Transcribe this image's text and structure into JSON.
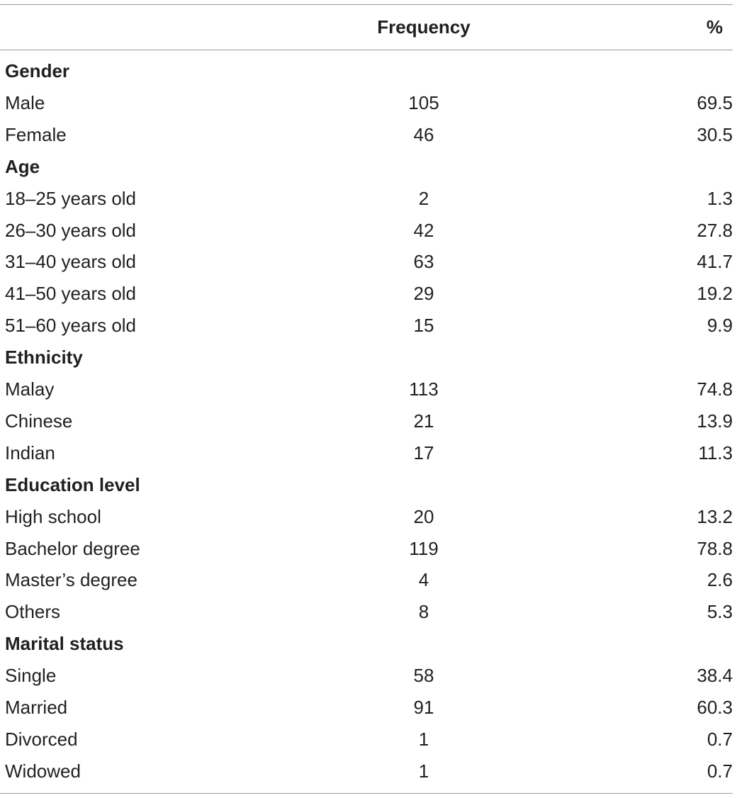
{
  "table": {
    "headers": {
      "label": "",
      "frequency": "Frequency",
      "percent": "%"
    },
    "rows": [
      {
        "label": "Gender",
        "section": true
      },
      {
        "label": "Male",
        "frequency": "105",
        "percent": "69.5"
      },
      {
        "label": "Female",
        "frequency": "46",
        "percent": "30.5"
      },
      {
        "label": "Age",
        "section": true
      },
      {
        "label": "18–25 years old",
        "frequency": "2",
        "percent": "1.3"
      },
      {
        "label": "26–30 years old",
        "frequency": "42",
        "percent": "27.8"
      },
      {
        "label": "31–40 years old",
        "frequency": "63",
        "percent": "41.7"
      },
      {
        "label": "41–50 years old",
        "frequency": "29",
        "percent": "19.2"
      },
      {
        "label": "51–60 years old",
        "frequency": "15",
        "percent": "9.9"
      },
      {
        "label": "Ethnicity",
        "section": true
      },
      {
        "label": "Malay",
        "frequency": "113",
        "percent": "74.8"
      },
      {
        "label": "Chinese",
        "frequency": "21",
        "percent": "13.9"
      },
      {
        "label": "Indian",
        "frequency": "17",
        "percent": "11.3"
      },
      {
        "label": "Education level",
        "section": true
      },
      {
        "label": "High school",
        "frequency": "20",
        "percent": "13.2"
      },
      {
        "label": "Bachelor degree",
        "frequency": "119",
        "percent": "78.8"
      },
      {
        "label": "Master’s degree",
        "frequency": "4",
        "percent": "2.6"
      },
      {
        "label": "Others",
        "frequency": "8",
        "percent": "5.3"
      },
      {
        "label": "Marital status",
        "section": true
      },
      {
        "label": "Single",
        "frequency": "58",
        "percent": "38.4"
      },
      {
        "label": "Married",
        "frequency": "91",
        "percent": "60.3"
      },
      {
        "label": "Divorced",
        "frequency": "1",
        "percent": "0.7"
      },
      {
        "label": "Widowed",
        "frequency": "1",
        "percent": "0.7"
      }
    ]
  }
}
